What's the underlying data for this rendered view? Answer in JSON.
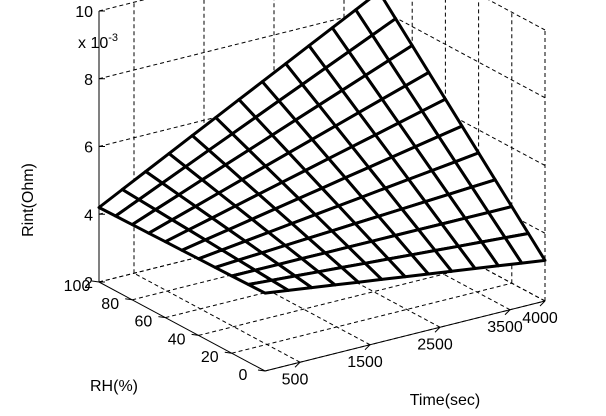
{
  "chart_data": {
    "type": "surface",
    "xlabel": "Time(sec)",
    "ylabel": "RH(%)",
    "zlabel": "Rint(Ohm)",
    "z_exponent_label": "x 10",
    "z_exponent_power": "-3",
    "xlim": [
      0,
      4000
    ],
    "ylim": [
      0,
      100
    ],
    "zlim": [
      2,
      10
    ],
    "x_ticks": [
      "500",
      "1500",
      "2500",
      "3500",
      "4000"
    ],
    "y_ticks": [
      "0",
      "20",
      "40",
      "60",
      "80",
      "100"
    ],
    "z_ticks": [
      "2",
      "4",
      "6",
      "8",
      "10"
    ],
    "x_tick_values": [
      500,
      1500,
      2500,
      3500,
      4000
    ],
    "y_tick_values": [
      0,
      20,
      40,
      60,
      80,
      100
    ],
    "z_tick_values": [
      2,
      4,
      6,
      8,
      10
    ],
    "grid": true,
    "surface": {
      "x_range": [
        0,
        4000
      ],
      "y_range": [
        0,
        100
      ],
      "n_x": 13,
      "n_y": 11,
      "corner_values": {
        "x0_y0": 4.3,
        "x4000_y0": 3.2,
        "x0_y100": 4.2,
        "x4000_y100": 8.5
      }
    }
  }
}
